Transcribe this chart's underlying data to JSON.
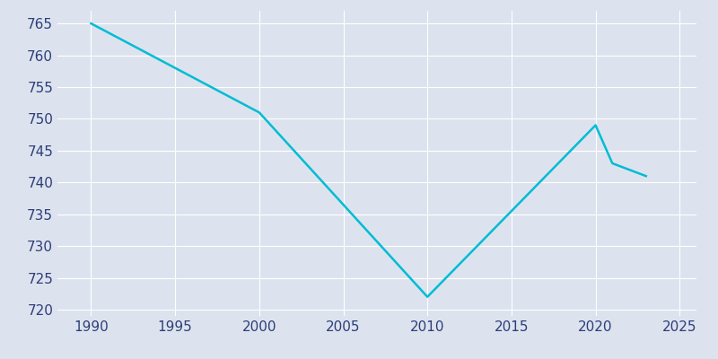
{
  "x": [
    1990,
    2000,
    2010,
    2020,
    2021,
    2022,
    2023
  ],
  "y": [
    765,
    751,
    722,
    749,
    743,
    742,
    741
  ],
  "line_color": "#00BCD4",
  "line_width": 1.8,
  "background_color": "#DDE3EE",
  "axes_facecolor": "#DDE3EE",
  "figure_facecolor": "#DDE3EE",
  "grid_color": "#ffffff",
  "tick_color": "#2c3e7a",
  "xlim": [
    1988,
    2026
  ],
  "ylim": [
    719,
    767
  ],
  "xticks": [
    1990,
    1995,
    2000,
    2005,
    2010,
    2015,
    2020,
    2025
  ],
  "yticks": [
    720,
    725,
    730,
    735,
    740,
    745,
    750,
    755,
    760,
    765
  ],
  "tick_fontsize": 11
}
